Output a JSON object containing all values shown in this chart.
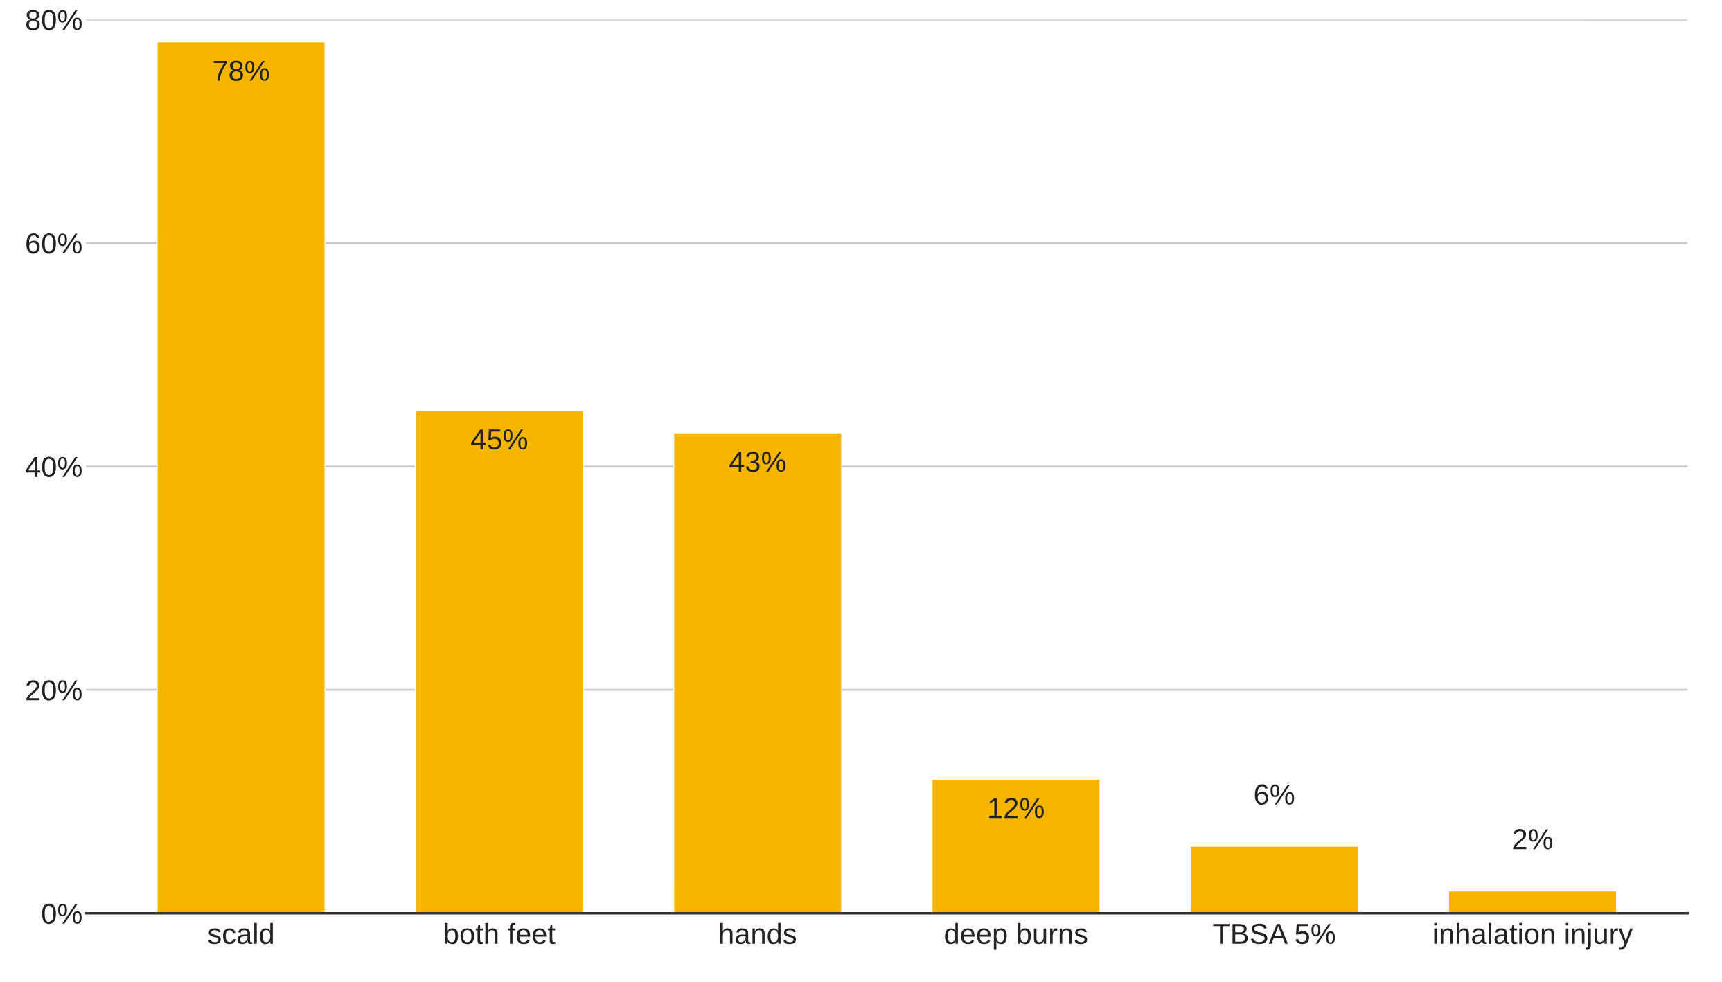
{
  "chart_data": {
    "type": "bar",
    "categories": [
      "scald",
      "both feet",
      "hands",
      "deep burns",
      "TBSA 5%",
      "inhalation injury"
    ],
    "values": [
      78,
      45,
      43,
      12,
      6,
      2
    ],
    "value_labels": [
      "78%",
      "45%",
      "43%",
      "12%",
      "6%",
      "2%"
    ],
    "color": "#f4b400",
    "ylim": [
      0,
      80
    ],
    "yticks": [
      {
        "value": 0,
        "label": "0%"
      },
      {
        "value": 20,
        "label": "20%"
      },
      {
        "value": 40,
        "label": "40%"
      },
      {
        "value": 60,
        "label": "60%"
      },
      {
        "value": 80,
        "label": "80%"
      }
    ],
    "grid": "y",
    "legend": false
  }
}
